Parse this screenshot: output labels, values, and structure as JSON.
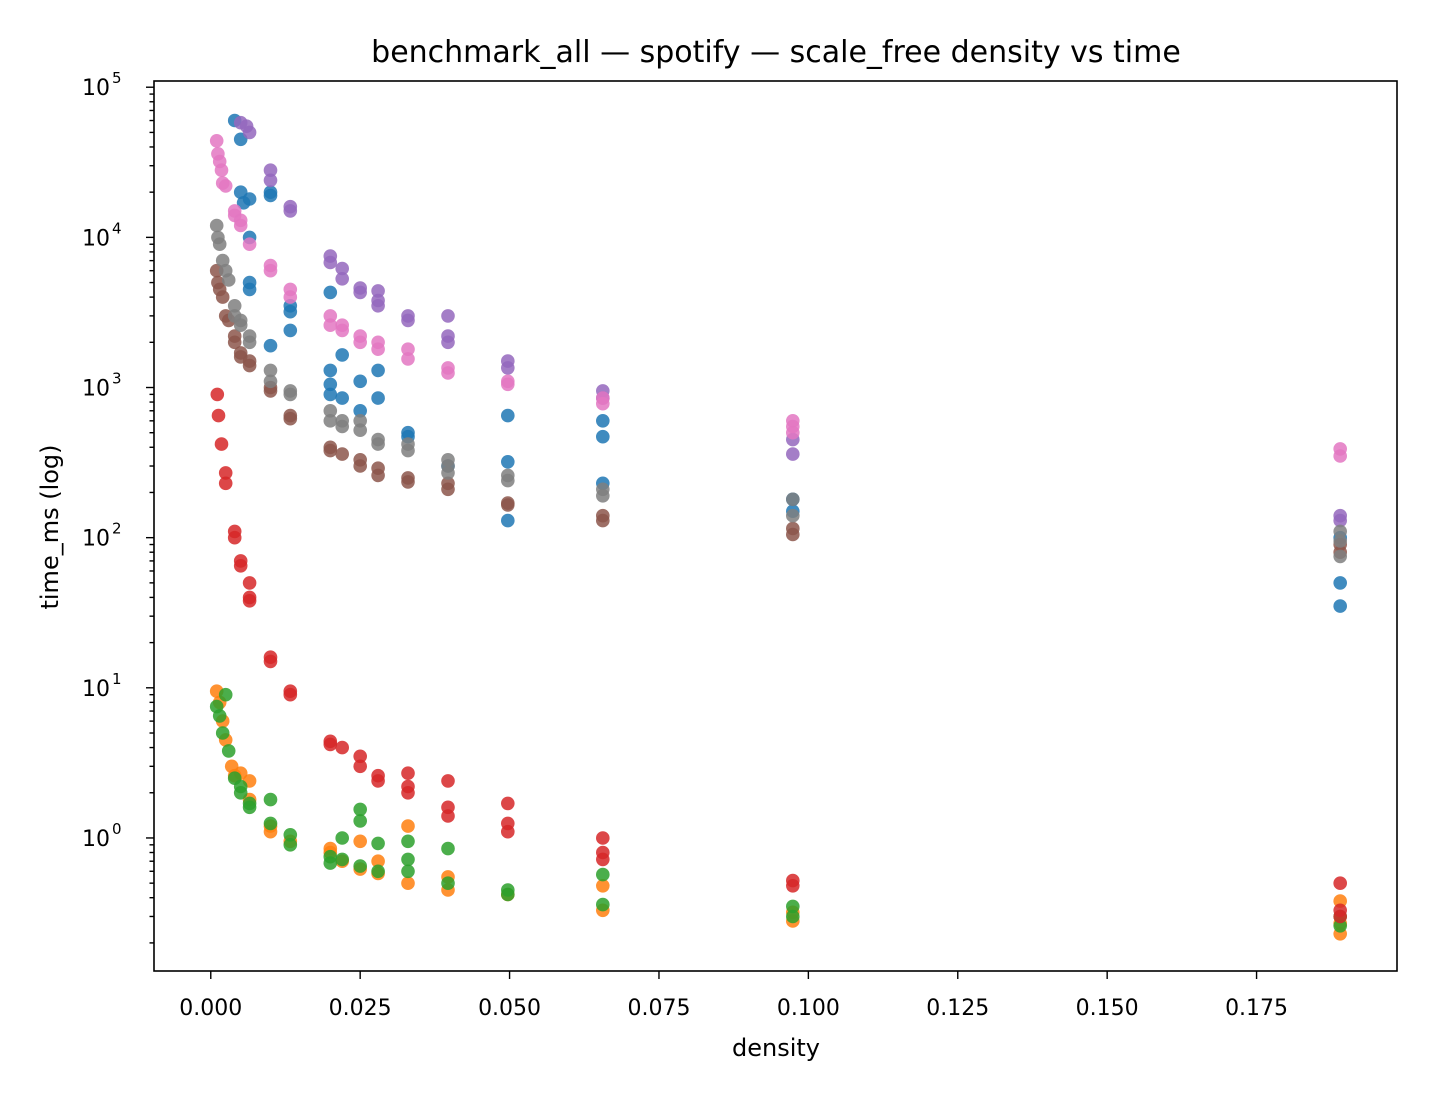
{
  "chart_data": {
    "type": "scatter",
    "title": "benchmark_all — spotify — scale_free density vs time",
    "xlabel": "density",
    "ylabel": "time_ms (log)",
    "xlim": [
      -0.0095,
      0.1985
    ],
    "ylim": [
      0.13,
      110000
    ],
    "y_scale": "log",
    "grid": false,
    "x_ticks": [
      {
        "value": 0.0,
        "label": "0.000"
      },
      {
        "value": 0.025,
        "label": "0.025"
      },
      {
        "value": 0.05,
        "label": "0.050"
      },
      {
        "value": 0.075,
        "label": "0.075"
      },
      {
        "value": 0.1,
        "label": "0.100"
      },
      {
        "value": 0.125,
        "label": "0.125"
      },
      {
        "value": 0.15,
        "label": "0.150"
      },
      {
        "value": 0.175,
        "label": "0.175"
      }
    ],
    "y_ticks": [
      {
        "value": 1,
        "base": "10",
        "exp": "0"
      },
      {
        "value": 10,
        "base": "10",
        "exp": "1"
      },
      {
        "value": 100,
        "base": "10",
        "exp": "2"
      },
      {
        "value": 1000,
        "base": "10",
        "exp": "3"
      },
      {
        "value": 10000,
        "base": "10",
        "exp": "4"
      },
      {
        "value": 100000,
        "base": "10",
        "exp": "5"
      }
    ],
    "series": [
      {
        "color": "#1f77b4",
        "points": [
          [
            0.004,
            60000
          ],
          [
            0.005,
            45000
          ],
          [
            0.005,
            20000
          ],
          [
            0.0055,
            17000
          ],
          [
            0.0065,
            18000
          ],
          [
            0.0065,
            10000
          ],
          [
            0.0065,
            5000
          ],
          [
            0.0065,
            4500
          ],
          [
            0.01,
            20000
          ],
          [
            0.01,
            19000
          ],
          [
            0.01,
            1900
          ],
          [
            0.0133,
            3500
          ],
          [
            0.0133,
            3200
          ],
          [
            0.0133,
            2400
          ],
          [
            0.02,
            4300
          ],
          [
            0.02,
            1300
          ],
          [
            0.02,
            1050
          ],
          [
            0.02,
            900
          ],
          [
            0.022,
            1650
          ],
          [
            0.022,
            850
          ],
          [
            0.025,
            1100
          ],
          [
            0.025,
            700
          ],
          [
            0.028,
            1300
          ],
          [
            0.028,
            850
          ],
          [
            0.033,
            500
          ],
          [
            0.033,
            470
          ],
          [
            0.0397,
            300
          ],
          [
            0.0497,
            650
          ],
          [
            0.0497,
            130
          ],
          [
            0.0497,
            320
          ],
          [
            0.0656,
            600
          ],
          [
            0.0656,
            470
          ],
          [
            0.0656,
            230
          ],
          [
            0.0974,
            180
          ],
          [
            0.0974,
            150
          ],
          [
            0.189,
            50
          ],
          [
            0.189,
            35
          ],
          [
            0.189,
            100
          ]
        ]
      },
      {
        "color": "#ff7f0e",
        "points": [
          [
            0.001,
            9.5
          ],
          [
            0.0015,
            8.0
          ],
          [
            0.002,
            6.0
          ],
          [
            0.0025,
            4.5
          ],
          [
            0.0035,
            3.0
          ],
          [
            0.004,
            2.6
          ],
          [
            0.005,
            2.7
          ],
          [
            0.0065,
            2.4
          ],
          [
            0.0065,
            1.8
          ],
          [
            0.01,
            1.2
          ],
          [
            0.01,
            1.1
          ],
          [
            0.0133,
            0.95
          ],
          [
            0.02,
            0.85
          ],
          [
            0.02,
            0.8
          ],
          [
            0.022,
            0.7
          ],
          [
            0.025,
            0.95
          ],
          [
            0.025,
            0.62
          ],
          [
            0.028,
            0.7
          ],
          [
            0.028,
            0.58
          ],
          [
            0.033,
            1.2
          ],
          [
            0.033,
            0.5
          ],
          [
            0.0397,
            0.55
          ],
          [
            0.0397,
            0.45
          ],
          [
            0.0497,
            0.42
          ],
          [
            0.0656,
            0.48
          ],
          [
            0.0656,
            0.33
          ],
          [
            0.0974,
            0.32
          ],
          [
            0.0974,
            0.28
          ],
          [
            0.189,
            0.38
          ],
          [
            0.189,
            0.27
          ],
          [
            0.189,
            0.23
          ]
        ]
      },
      {
        "color": "#2ca02c",
        "points": [
          [
            0.001,
            7.5
          ],
          [
            0.0015,
            6.5
          ],
          [
            0.002,
            5.0
          ],
          [
            0.0025,
            9.0
          ],
          [
            0.003,
            3.8
          ],
          [
            0.004,
            2.5
          ],
          [
            0.005,
            2.2
          ],
          [
            0.005,
            2.0
          ],
          [
            0.0065,
            1.7
          ],
          [
            0.0065,
            1.6
          ],
          [
            0.01,
            1.8
          ],
          [
            0.01,
            1.25
          ],
          [
            0.0133,
            1.05
          ],
          [
            0.0133,
            0.9
          ],
          [
            0.02,
            0.75
          ],
          [
            0.02,
            0.68
          ],
          [
            0.022,
            1.0
          ],
          [
            0.022,
            0.72
          ],
          [
            0.025,
            1.55
          ],
          [
            0.025,
            1.3
          ],
          [
            0.025,
            0.65
          ],
          [
            0.028,
            0.92
          ],
          [
            0.028,
            0.6
          ],
          [
            0.033,
            0.95
          ],
          [
            0.033,
            0.72
          ],
          [
            0.033,
            0.6
          ],
          [
            0.0397,
            0.85
          ],
          [
            0.0397,
            0.5
          ],
          [
            0.0497,
            0.45
          ],
          [
            0.0497,
            0.42
          ],
          [
            0.0656,
            0.57
          ],
          [
            0.0656,
            0.36
          ],
          [
            0.0974,
            0.35
          ],
          [
            0.0974,
            0.3
          ],
          [
            0.189,
            0.3
          ],
          [
            0.189,
            0.26
          ]
        ]
      },
      {
        "color": "#d62728",
        "points": [
          [
            0.0011,
            900
          ],
          [
            0.0013,
            650
          ],
          [
            0.0018,
            420
          ],
          [
            0.0025,
            270
          ],
          [
            0.0025,
            230
          ],
          [
            0.004,
            110
          ],
          [
            0.004,
            100
          ],
          [
            0.005,
            70
          ],
          [
            0.005,
            65
          ],
          [
            0.0065,
            50
          ],
          [
            0.0065,
            40
          ],
          [
            0.0065,
            38
          ],
          [
            0.01,
            16
          ],
          [
            0.01,
            15
          ],
          [
            0.0133,
            9.5
          ],
          [
            0.0133,
            9.0
          ],
          [
            0.02,
            4.4
          ],
          [
            0.02,
            4.2
          ],
          [
            0.022,
            4.0
          ],
          [
            0.025,
            3.5
          ],
          [
            0.025,
            3.0
          ],
          [
            0.028,
            2.6
          ],
          [
            0.028,
            2.4
          ],
          [
            0.033,
            2.7
          ],
          [
            0.033,
            2.2
          ],
          [
            0.033,
            2.0
          ],
          [
            0.0397,
            2.4
          ],
          [
            0.0397,
            1.6
          ],
          [
            0.0397,
            1.4
          ],
          [
            0.0497,
            1.7
          ],
          [
            0.0497,
            1.25
          ],
          [
            0.0497,
            1.1
          ],
          [
            0.0656,
            1.0
          ],
          [
            0.0656,
            0.8
          ],
          [
            0.0656,
            0.72
          ],
          [
            0.0974,
            0.52
          ],
          [
            0.0974,
            0.48
          ],
          [
            0.189,
            0.5
          ],
          [
            0.189,
            0.33
          ],
          [
            0.189,
            0.3
          ]
        ]
      },
      {
        "color": "#9467bd",
        "points": [
          [
            0.005,
            58000
          ],
          [
            0.006,
            55000
          ],
          [
            0.0065,
            50000
          ],
          [
            0.01,
            28000
          ],
          [
            0.01,
            24000
          ],
          [
            0.0133,
            16000
          ],
          [
            0.0133,
            15000
          ],
          [
            0.02,
            7500
          ],
          [
            0.02,
            6800
          ],
          [
            0.022,
            6200
          ],
          [
            0.022,
            5300
          ],
          [
            0.025,
            4600
          ],
          [
            0.025,
            4300
          ],
          [
            0.028,
            4400
          ],
          [
            0.028,
            3800
          ],
          [
            0.028,
            3500
          ],
          [
            0.033,
            3000
          ],
          [
            0.033,
            2800
          ],
          [
            0.0397,
            3000
          ],
          [
            0.0397,
            2200
          ],
          [
            0.0397,
            2000
          ],
          [
            0.0497,
            1500
          ],
          [
            0.0497,
            1350
          ],
          [
            0.0656,
            950
          ],
          [
            0.0656,
            850
          ],
          [
            0.0974,
            450
          ],
          [
            0.0974,
            360
          ],
          [
            0.189,
            140
          ],
          [
            0.189,
            130
          ]
        ]
      },
      {
        "color": "#8c564b",
        "points": [
          [
            0.001,
            6000
          ],
          [
            0.0012,
            5000
          ],
          [
            0.0015,
            4500
          ],
          [
            0.002,
            4000
          ],
          [
            0.0025,
            3000
          ],
          [
            0.003,
            2800
          ],
          [
            0.004,
            2000
          ],
          [
            0.004,
            2200
          ],
          [
            0.005,
            1700
          ],
          [
            0.005,
            1600
          ],
          [
            0.0065,
            1400
          ],
          [
            0.0065,
            1500
          ],
          [
            0.01,
            950
          ],
          [
            0.01,
            1000
          ],
          [
            0.0133,
            620
          ],
          [
            0.0133,
            650
          ],
          [
            0.02,
            400
          ],
          [
            0.02,
            380
          ],
          [
            0.022,
            360
          ],
          [
            0.025,
            330
          ],
          [
            0.025,
            300
          ],
          [
            0.028,
            290
          ],
          [
            0.028,
            260
          ],
          [
            0.033,
            250
          ],
          [
            0.033,
            235
          ],
          [
            0.0397,
            230
          ],
          [
            0.0397,
            210
          ],
          [
            0.0497,
            170
          ],
          [
            0.0497,
            165
          ],
          [
            0.0656,
            140
          ],
          [
            0.0656,
            130
          ],
          [
            0.0974,
            115
          ],
          [
            0.0974,
            105
          ],
          [
            0.189,
            90
          ],
          [
            0.189,
            80
          ]
        ]
      },
      {
        "color": "#e377c2",
        "points": [
          [
            0.001,
            44000
          ],
          [
            0.0012,
            36000
          ],
          [
            0.0015,
            32000
          ],
          [
            0.0018,
            28000
          ],
          [
            0.002,
            23000
          ],
          [
            0.0025,
            22000
          ],
          [
            0.004,
            15000
          ],
          [
            0.004,
            14000
          ],
          [
            0.005,
            13000
          ],
          [
            0.005,
            12000
          ],
          [
            0.0065,
            9000
          ],
          [
            0.01,
            6500
          ],
          [
            0.01,
            6000
          ],
          [
            0.0133,
            4500
          ],
          [
            0.0133,
            4000
          ],
          [
            0.02,
            3000
          ],
          [
            0.02,
            2600
          ],
          [
            0.022,
            2600
          ],
          [
            0.022,
            2400
          ],
          [
            0.025,
            2200
          ],
          [
            0.025,
            2000
          ],
          [
            0.028,
            2000
          ],
          [
            0.028,
            1800
          ],
          [
            0.033,
            1800
          ],
          [
            0.033,
            1550
          ],
          [
            0.0397,
            1350
          ],
          [
            0.0397,
            1250
          ],
          [
            0.0497,
            1100
          ],
          [
            0.0497,
            1050
          ],
          [
            0.0656,
            850
          ],
          [
            0.0656,
            780
          ],
          [
            0.0974,
            600
          ],
          [
            0.0974,
            550
          ],
          [
            0.0974,
            500
          ],
          [
            0.189,
            390
          ],
          [
            0.189,
            350
          ]
        ]
      },
      {
        "color": "#7f7f7f",
        "points": [
          [
            0.001,
            12000
          ],
          [
            0.0012,
            10000
          ],
          [
            0.0015,
            9000
          ],
          [
            0.002,
            7000
          ],
          [
            0.0025,
            6000
          ],
          [
            0.003,
            5200
          ],
          [
            0.004,
            3500
          ],
          [
            0.004,
            3000
          ],
          [
            0.005,
            2800
          ],
          [
            0.005,
            2600
          ],
          [
            0.0065,
            2200
          ],
          [
            0.0065,
            2000
          ],
          [
            0.01,
            1300
          ],
          [
            0.01,
            1100
          ],
          [
            0.0133,
            950
          ],
          [
            0.0133,
            900
          ],
          [
            0.02,
            700
          ],
          [
            0.02,
            600
          ],
          [
            0.022,
            600
          ],
          [
            0.022,
            550
          ],
          [
            0.025,
            600
          ],
          [
            0.025,
            520
          ],
          [
            0.028,
            450
          ],
          [
            0.028,
            420
          ],
          [
            0.033,
            420
          ],
          [
            0.033,
            380
          ],
          [
            0.0397,
            330
          ],
          [
            0.0397,
            300
          ],
          [
            0.0397,
            270
          ],
          [
            0.0497,
            260
          ],
          [
            0.0497,
            240
          ],
          [
            0.0656,
            210
          ],
          [
            0.0656,
            190
          ],
          [
            0.0974,
            180
          ],
          [
            0.0974,
            140
          ],
          [
            0.189,
            110
          ],
          [
            0.189,
            95
          ],
          [
            0.189,
            75
          ]
        ]
      }
    ]
  }
}
